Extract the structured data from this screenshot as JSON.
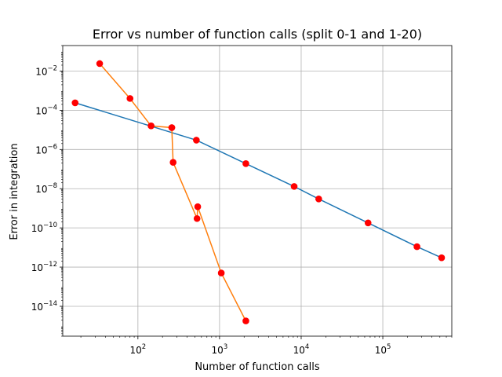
{
  "chart_data": {
    "type": "line",
    "title": "Error vs number of function calls (split 0-1 and 1-20)",
    "xlabel": "Number of function calls",
    "ylabel": "Error in integration",
    "xscale": "log",
    "yscale": "log",
    "xlim": [
      12,
      700000
    ],
    "ylim": [
      3e-16,
      0.2
    ],
    "grid": true,
    "x_ticks": [
      {
        "base": "10",
        "exp": "2",
        "value": 100
      },
      {
        "base": "10",
        "exp": "3",
        "value": 1000
      },
      {
        "base": "10",
        "exp": "4",
        "value": 10000
      },
      {
        "base": "10",
        "exp": "5",
        "value": 100000
      }
    ],
    "y_ticks": [
      {
        "base": "10",
        "exp": "−2",
        "value": 0.01
      },
      {
        "base": "10",
        "exp": "−4",
        "value": 0.0001
      },
      {
        "base": "10",
        "exp": "−6",
        "value": 1e-06
      },
      {
        "base": "10",
        "exp": "−8",
        "value": 1e-08
      },
      {
        "base": "10",
        "exp": "−10",
        "value": 1e-10
      },
      {
        "base": "10",
        "exp": "−12",
        "value": 1e-12
      },
      {
        "base": "10",
        "exp": "−14",
        "value": 1e-14
      }
    ],
    "marker_color": "#ff0000",
    "series": [
      {
        "color": "#1f77b4",
        "x": [
          17,
          520,
          2100,
          8200,
          16400,
          66000,
          262000,
          525000
        ],
        "y": [
          0.00024,
          3e-06,
          1.9e-07,
          1.3e-08,
          3e-09,
          1.8e-10,
          1.1e-11,
          3e-12
        ]
      },
      {
        "color": "#ff7f0e",
        "x": [
          34,
          80,
          145,
          260,
          270,
          530,
          540,
          1050,
          2100
        ],
        "y": [
          0.024,
          0.0004,
          1.6e-05,
          1.3e-05,
          2.2e-07,
          3e-10,
          1.2e-09,
          5e-13,
          1.8e-15
        ]
      }
    ],
    "isolated_markers": [
      {
        "x": 145,
        "y": 1.6e-05
      },
      {
        "x": 260,
        "y": 1.3e-05
      }
    ]
  }
}
